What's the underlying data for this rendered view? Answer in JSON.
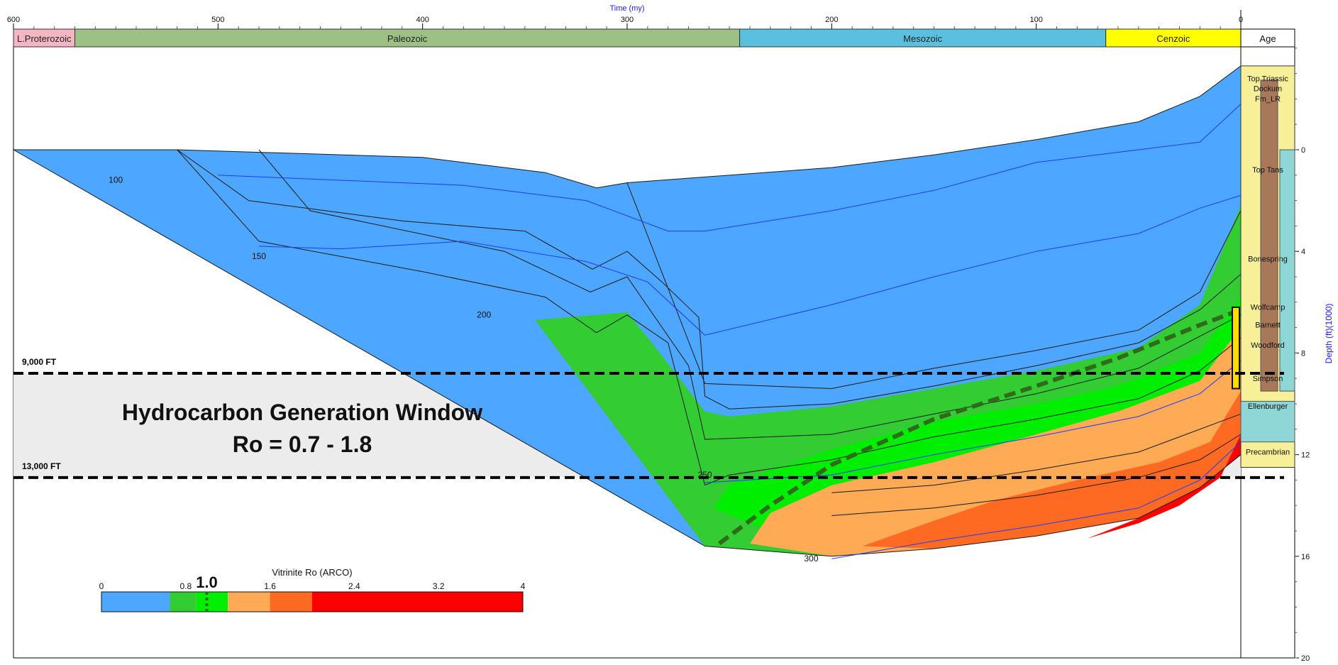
{
  "chart_data": {
    "type": "area",
    "title": "",
    "x_axis": {
      "label": "Time (my)",
      "range": [
        600,
        0
      ],
      "ticks": [
        "600",
        "500",
        "400",
        "300",
        "200",
        "100",
        "0"
      ]
    },
    "y_axis": {
      "label": "Depth (ft)(1000)",
      "range": [
        -4,
        20
      ],
      "ticks": [
        "0",
        "4",
        "8",
        "12",
        "16",
        "20"
      ]
    },
    "eras": [
      {
        "name": "L.Proterozoic",
        "start": 600,
        "end": 570,
        "color": "#f4b6c2"
      },
      {
        "name": "Paleozoic",
        "start": 570,
        "end": 245,
        "color": "#9dc184"
      },
      {
        "name": "Mesozoic",
        "start": 245,
        "end": 66,
        "color": "#5bc0de"
      },
      {
        "name": "Cenzoic",
        "start": 66,
        "end": 0,
        "color": "#ffff00"
      }
    ],
    "age_header": "Age",
    "formations": [
      {
        "name": "Top Triassic",
        "depth": -2.7
      },
      {
        "name": "Dockum",
        "depth": -2.3
      },
      {
        "name": "Fm_LR",
        "depth": -1.9
      },
      {
        "name": "Top Tans",
        "depth": 0.9
      },
      {
        "name": "Bonespring",
        "depth": 4.4
      },
      {
        "name": "Wolfcamp",
        "depth": 6.3
      },
      {
        "name": "Barnett",
        "depth": 7.0
      },
      {
        "name": "Woodford",
        "depth": 7.8
      },
      {
        "name": "Simpson",
        "depth": 9.1
      },
      {
        "name": "Ellenburger",
        "depth": 10.2
      },
      {
        "name": "Precambrian",
        "depth": 12.0
      }
    ],
    "reference_lines": [
      {
        "label": "9,000 FT",
        "depth": 8.8
      },
      {
        "label": "13,000 FT",
        "depth": 12.9
      }
    ],
    "annotation_title": "Hydrocarbon Generation Window",
    "annotation_subtitle": "Ro = 0.7 - 1.8",
    "temperature_labels": [
      {
        "text": "100",
        "x": 550,
        "y": 1.3
      },
      {
        "text": "150",
        "x": 480,
        "y": 4.3
      },
      {
        "text": "200",
        "x": 370,
        "y": 6.6
      },
      {
        "text": "250",
        "x": 262,
        "y": 12.9
      },
      {
        "text": "300",
        "x": 210,
        "y": 16.2
      }
    ],
    "surface": [
      [
        600,
        0
      ],
      [
        520,
        0
      ],
      [
        400,
        0.3
      ],
      [
        340,
        0.9
      ],
      [
        315,
        1.5
      ],
      [
        300,
        1.3
      ],
      [
        200,
        0.7
      ],
      [
        150,
        0.2
      ],
      [
        100,
        -0.4
      ],
      [
        50,
        -1.1
      ],
      [
        20,
        -2.1
      ],
      [
        0,
        -3.3
      ]
    ],
    "basement": [
      [
        262,
        15.6
      ],
      [
        200,
        16
      ],
      [
        150,
        15.7
      ],
      [
        100,
        15.2
      ],
      [
        50,
        14.5
      ],
      [
        20,
        13.3
      ],
      [
        0,
        12
      ]
    ],
    "maturity_zones": [
      {
        "ro_min": 0.7,
        "color": "#33cc33",
        "boundary": [
          [
            345,
            6.7
          ],
          [
            300,
            6.4
          ],
          [
            285,
            7.9
          ],
          [
            262,
            10.3
          ],
          [
            250,
            10.5
          ],
          [
            200,
            10.1
          ],
          [
            150,
            9.4
          ],
          [
            100,
            8.7
          ],
          [
            50,
            7.8
          ],
          [
            20,
            6.1
          ],
          [
            0,
            2.2
          ]
        ]
      },
      {
        "ro_min": 0.9,
        "color": "#00ee00",
        "boundary": [
          [
            258,
            14.1
          ],
          [
            250,
            13.2
          ],
          [
            200,
            11.8
          ],
          [
            150,
            10.7
          ],
          [
            100,
            10.0
          ],
          [
            60,
            9.3
          ],
          [
            20,
            8.0
          ],
          [
            0,
            5.8
          ]
        ]
      },
      {
        "ro_min": 1.1,
        "color": "#ffaa55",
        "boundary": [
          [
            240,
            15.5
          ],
          [
            230,
            14.3
          ],
          [
            200,
            13.2
          ],
          [
            150,
            12.3
          ],
          [
            100,
            11.2
          ],
          [
            60,
            10.3
          ],
          [
            20,
            9.1
          ],
          [
            0,
            7.0
          ]
        ]
      },
      {
        "ro_min": 1.6,
        "color": "#ff6a22",
        "boundary": [
          [
            185,
            15.6
          ],
          [
            150,
            14.6
          ],
          [
            120,
            13.8
          ],
          [
            80,
            13.0
          ],
          [
            40,
            12.3
          ],
          [
            15,
            11.5
          ],
          [
            0,
            9.5
          ]
        ]
      },
      {
        "ro_min": 2.1,
        "color": "#ff0000",
        "boundary": [
          [
            75,
            15.3
          ],
          [
            50,
            14.7
          ],
          [
            30,
            14.0
          ],
          [
            10,
            12.9
          ],
          [
            0,
            11.2
          ]
        ]
      }
    ],
    "burial_lines": [
      [
        [
          600,
          0
        ],
        [
          520,
          0
        ],
        [
          485,
          2.0
        ],
        [
          410,
          2.8
        ],
        [
          350,
          3.2
        ],
        [
          317,
          4.7
        ],
        [
          300,
          4.0
        ],
        [
          283,
          5.2
        ],
        [
          265,
          6.6
        ],
        [
          262,
          9.7
        ],
        [
          250,
          10.2
        ],
        [
          200,
          10.0
        ],
        [
          150,
          9.3
        ],
        [
          100,
          8.5
        ],
        [
          50,
          7.6
        ],
        [
          20,
          6.3
        ],
        [
          0,
          4.9
        ]
      ],
      [
        [
          520,
          0
        ],
        [
          480,
          3.6
        ],
        [
          400,
          4.8
        ],
        [
          340,
          5.8
        ],
        [
          315,
          7.2
        ],
        [
          300,
          6.5
        ],
        [
          280,
          7.6
        ],
        [
          262,
          13.2
        ],
        [
          250,
          12.8
        ],
        [
          200,
          12.2
        ],
        [
          150,
          11.3
        ],
        [
          100,
          10.6
        ],
        [
          50,
          9.8
        ],
        [
          20,
          8.7
        ],
        [
          0,
          7.4
        ]
      ],
      [
        [
          480,
          0
        ],
        [
          455,
          2.4
        ],
        [
          360,
          4.0
        ],
        [
          318,
          5.6
        ],
        [
          300,
          5.0
        ],
        [
          270,
          8.5
        ],
        [
          262,
          11.4
        ],
        [
          200,
          11.2
        ],
        [
          150,
          10.4
        ],
        [
          100,
          9.6
        ],
        [
          50,
          8.6
        ],
        [
          0,
          6.5
        ]
      ],
      [
        [
          300,
          1.3
        ],
        [
          262,
          9.2
        ],
        [
          200,
          9.4
        ],
        [
          150,
          8.6
        ],
        [
          100,
          7.9
        ],
        [
          50,
          7.1
        ],
        [
          20,
          5.6
        ],
        [
          0,
          2.4
        ]
      ],
      [
        [
          200,
          13.5
        ],
        [
          150,
          13.2
        ],
        [
          100,
          12.6
        ],
        [
          50,
          11.9
        ],
        [
          0,
          10.4
        ]
      ],
      [
        [
          200,
          14.4
        ],
        [
          150,
          14.1
        ],
        [
          100,
          13.6
        ],
        [
          50,
          12.9
        ],
        [
          20,
          12.2
        ],
        [
          0,
          11.2
        ]
      ]
    ],
    "blue_contours": [
      [
        [
          500,
          1.0
        ],
        [
          440,
          1.2
        ],
        [
          380,
          1.4
        ],
        [
          320,
          2.0
        ],
        [
          280,
          3.2
        ],
        [
          262,
          3.2
        ],
        [
          200,
          2.4
        ],
        [
          150,
          1.6
        ],
        [
          100,
          0.5
        ],
        [
          50,
          0
        ],
        [
          20,
          -0.3
        ],
        [
          0,
          -1.8
        ]
      ],
      [
        [
          480,
          3.8
        ],
        [
          440,
          3.9
        ],
        [
          380,
          3.6
        ],
        [
          320,
          4.4
        ],
        [
          290,
          5.2
        ],
        [
          262,
          7.3
        ],
        [
          200,
          6.1
        ],
        [
          150,
          5.0
        ],
        [
          100,
          4.0
        ],
        [
          50,
          3.3
        ],
        [
          20,
          2.3
        ],
        [
          0,
          1.8
        ]
      ],
      [
        [
          262,
          13.1
        ],
        [
          200,
          12.8
        ],
        [
          150,
          12.0
        ],
        [
          100,
          11.3
        ],
        [
          50,
          10.5
        ],
        [
          20,
          9.6
        ],
        [
          0,
          8.3
        ]
      ],
      [
        [
          200,
          16.1
        ],
        [
          150,
          15.4
        ],
        [
          100,
          14.8
        ],
        [
          50,
          14.1
        ],
        [
          20,
          13.0
        ],
        [
          0,
          11.5
        ]
      ]
    ],
    "ro_trend_line": [
      [
        255,
        15.5
      ],
      [
        230,
        14.0
      ],
      [
        200,
        12.4
      ],
      [
        150,
        10.6
      ],
      [
        100,
        9.3
      ],
      [
        60,
        8.2
      ],
      [
        20,
        6.9
      ],
      [
        0,
        6.3
      ]
    ],
    "colorbar": {
      "title": "Vitrinite Ro (ARCO)",
      "min": 0,
      "max": 4,
      "tick_labels": [
        "0",
        "0.8",
        "1.6",
        "2.4",
        "3.2",
        "4"
      ],
      "highlight_label": "1.0",
      "highlight_value": 1.0,
      "segments": [
        {
          "from": 0,
          "to": 0.65,
          "color": "#4da6ff"
        },
        {
          "from": 0.65,
          "to": 0.9,
          "color": "#33cc33"
        },
        {
          "from": 0.9,
          "to": 1.2,
          "color": "#00ee00"
        },
        {
          "from": 1.2,
          "to": 1.6,
          "color": "#ffaa55"
        },
        {
          "from": 1.6,
          "to": 2.0,
          "color": "#ff6a22"
        },
        {
          "from": 2.0,
          "to": 4.0,
          "color": "#ff0000"
        }
      ]
    },
    "colors": {
      "immature": "#4da6ff",
      "window_band": "#ececec",
      "contour_black": "#1a1a1a",
      "contour_blue": "#1e3cff",
      "trend": "#2f6b1a",
      "axis_label": "#1a1aff"
    }
  }
}
